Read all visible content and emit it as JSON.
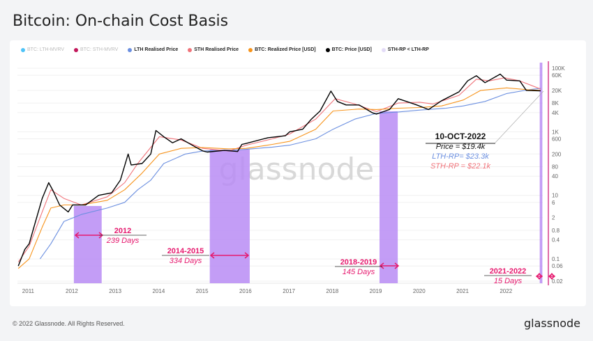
{
  "title": "Bitcoin: On-chain Cost Basis",
  "legend": [
    {
      "label": "BTC: LTH-MVRV",
      "color": "#4fc3f7",
      "faded": true
    },
    {
      "label": "BTC: STH-MVRV",
      "color": "#c2185b",
      "faded": true
    },
    {
      "label": "LTH Realised Price",
      "color": "#6b8fe0",
      "faded": false
    },
    {
      "label": "STH Realised Price",
      "color": "#f0737a",
      "faded": false
    },
    {
      "label": "BTC: Realized Price [USD]",
      "color": "#f7931a",
      "faded": false
    },
    {
      "label": "BTC: Price [USD]",
      "color": "#000000",
      "faded": false
    },
    {
      "label": "STH-RP < LTH-RP",
      "color": "#e4dcf7",
      "faded": false
    }
  ],
  "watermark": "glassnode",
  "footer": {
    "copyright": "© 2022 Glassnode. All Rights Reserved.",
    "logo": "glassnode"
  },
  "colors": {
    "shade": "#b98cf5",
    "annotation": "#e6196e",
    "marker_line": "#d63a8a"
  },
  "chart_data": {
    "type": "line",
    "y_scale": "log",
    "ylim": [
      0.02,
      100000
    ],
    "xlim": [
      2010.73,
      2022.83
    ],
    "grid": true,
    "legend_placement": "top-left",
    "x_ticks": [
      "2011",
      "2012",
      "2013",
      "2014",
      "2015",
      "2016",
      "2017",
      "2018",
      "2019",
      "2020",
      "2021",
      "2022"
    ],
    "y_ticks": [
      {
        "v": 100000,
        "label": "100K"
      },
      {
        "v": 60000,
        "label": "60K"
      },
      {
        "v": 20000,
        "label": "20K"
      },
      {
        "v": 8000,
        "label": "8K"
      },
      {
        "v": 4000,
        "label": "4K"
      },
      {
        "v": 1000,
        "label": "1K"
      },
      {
        "v": 600,
        "label": "600"
      },
      {
        "v": 200,
        "label": "200"
      },
      {
        "v": 80,
        "label": "80"
      },
      {
        "v": 40,
        "label": "40"
      },
      {
        "v": 10,
        "label": "10"
      },
      {
        "v": 6,
        "label": "6"
      },
      {
        "v": 2,
        "label": "2"
      },
      {
        "v": 0.8,
        "label": "0.8"
      },
      {
        "v": 0.4,
        "label": "0.4"
      },
      {
        "v": 0.1,
        "label": "0.1"
      },
      {
        "v": 0.06,
        "label": "0.06"
      },
      {
        "v": 0.02,
        "label": "0.02"
      }
    ],
    "series": [
      {
        "name": "BTC: Price [USD]",
        "color": "#000000",
        "points": [
          [
            2010.75,
            0.06
          ],
          [
            2010.9,
            0.2
          ],
          [
            2011.0,
            0.3
          ],
          [
            2011.1,
            0.9
          ],
          [
            2011.3,
            8
          ],
          [
            2011.45,
            25
          ],
          [
            2011.55,
            14
          ],
          [
            2011.7,
            5
          ],
          [
            2011.9,
            3
          ],
          [
            2012.0,
            5
          ],
          [
            2012.3,
            5
          ],
          [
            2012.6,
            10
          ],
          [
            2012.9,
            12
          ],
          [
            2013.1,
            30
          ],
          [
            2013.28,
            200
          ],
          [
            2013.35,
            90
          ],
          [
            2013.6,
            100
          ],
          [
            2013.8,
            200
          ],
          [
            2013.92,
            1100
          ],
          [
            2014.1,
            700
          ],
          [
            2014.3,
            450
          ],
          [
            2014.5,
            600
          ],
          [
            2014.8,
            350
          ],
          [
            2015.0,
            250
          ],
          [
            2015.1,
            230
          ],
          [
            2015.5,
            260
          ],
          [
            2015.8,
            240
          ],
          [
            2015.9,
            400
          ],
          [
            2016.0,
            430
          ],
          [
            2016.5,
            650
          ],
          [
            2016.9,
            750
          ],
          [
            2017.0,
            1000
          ],
          [
            2017.3,
            1200
          ],
          [
            2017.5,
            2500
          ],
          [
            2017.7,
            4500
          ],
          [
            2017.95,
            19000
          ],
          [
            2018.1,
            9000
          ],
          [
            2018.3,
            7000
          ],
          [
            2018.6,
            7000
          ],
          [
            2018.9,
            4000
          ],
          [
            2019.0,
            3600
          ],
          [
            2019.3,
            5000
          ],
          [
            2019.5,
            11000
          ],
          [
            2019.9,
            7200
          ],
          [
            2020.2,
            5000
          ],
          [
            2020.5,
            9500
          ],
          [
            2020.9,
            18000
          ],
          [
            2021.1,
            40000
          ],
          [
            2021.3,
            58000
          ],
          [
            2021.5,
            35000
          ],
          [
            2021.85,
            65000
          ],
          [
            2022.0,
            42000
          ],
          [
            2022.3,
            40000
          ],
          [
            2022.45,
            20000
          ],
          [
            2022.78,
            19400
          ]
        ]
      },
      {
        "name": "BTC: Realized Price [USD]",
        "color": "#f7931a",
        "points": [
          [
            2010.75,
            0.05
          ],
          [
            2011.0,
            0.1
          ],
          [
            2011.3,
            1
          ],
          [
            2011.5,
            4
          ],
          [
            2011.8,
            5
          ],
          [
            2012.2,
            5
          ],
          [
            2012.8,
            7
          ],
          [
            2013.2,
            15
          ],
          [
            2013.6,
            50
          ],
          [
            2014.0,
            200
          ],
          [
            2014.5,
            300
          ],
          [
            2015.0,
            320
          ],
          [
            2015.6,
            290
          ],
          [
            2016.0,
            300
          ],
          [
            2016.6,
            400
          ],
          [
            2017.0,
            500
          ],
          [
            2017.6,
            1200
          ],
          [
            2018.0,
            4500
          ],
          [
            2018.6,
            5200
          ],
          [
            2019.0,
            5000
          ],
          [
            2019.5,
            5500
          ],
          [
            2020.0,
            5800
          ],
          [
            2020.5,
            6500
          ],
          [
            2021.0,
            10000
          ],
          [
            2021.4,
            20000
          ],
          [
            2022.0,
            24000
          ],
          [
            2022.5,
            21000
          ],
          [
            2022.78,
            20000
          ]
        ]
      },
      {
        "name": "STH Realised Price",
        "color": "#f0737a",
        "points": [
          [
            2010.75,
            0.08
          ],
          [
            2011.0,
            0.25
          ],
          [
            2011.3,
            3
          ],
          [
            2011.5,
            15
          ],
          [
            2011.8,
            8
          ],
          [
            2012.2,
            5
          ],
          [
            2012.8,
            9
          ],
          [
            2013.2,
            25
          ],
          [
            2013.5,
            100
          ],
          [
            2014.0,
            700
          ],
          [
            2014.5,
            550
          ],
          [
            2015.0,
            300
          ],
          [
            2015.6,
            250
          ],
          [
            2016.0,
            380
          ],
          [
            2016.6,
            600
          ],
          [
            2017.0,
            850
          ],
          [
            2017.6,
            2500
          ],
          [
            2018.05,
            11000
          ],
          [
            2018.5,
            7500
          ],
          [
            2019.0,
            4300
          ],
          [
            2019.5,
            8000
          ],
          [
            2020.0,
            8500
          ],
          [
            2020.3,
            7500
          ],
          [
            2020.9,
            14000
          ],
          [
            2021.3,
            45000
          ],
          [
            2021.6,
            40000
          ],
          [
            2021.95,
            50000
          ],
          [
            2022.3,
            40000
          ],
          [
            2022.78,
            22100
          ]
        ]
      },
      {
        "name": "LTH Realised Price",
        "color": "#6b8fe0",
        "points": [
          [
            2011.25,
            0.1
          ],
          [
            2011.5,
            0.3
          ],
          [
            2011.8,
            1.5
          ],
          [
            2012.2,
            2.5
          ],
          [
            2012.8,
            4
          ],
          [
            2013.2,
            6
          ],
          [
            2013.5,
            15
          ],
          [
            2013.8,
            30
          ],
          [
            2014.1,
            100
          ],
          [
            2014.6,
            200
          ],
          [
            2015.0,
            250
          ],
          [
            2015.6,
            260
          ],
          [
            2016.0,
            280
          ],
          [
            2016.6,
            330
          ],
          [
            2017.0,
            380
          ],
          [
            2017.6,
            600
          ],
          [
            2018.0,
            1200
          ],
          [
            2018.5,
            2500
          ],
          [
            2019.0,
            3800
          ],
          [
            2019.5,
            4200
          ],
          [
            2020.0,
            4800
          ],
          [
            2020.6,
            5500
          ],
          [
            2021.0,
            6500
          ],
          [
            2021.5,
            9000
          ],
          [
            2022.0,
            16000
          ],
          [
            2022.5,
            21000
          ],
          [
            2022.78,
            23300
          ]
        ]
      }
    ],
    "regions": [
      {
        "start": 2012.03,
        "end": 2012.67,
        "label": "2012",
        "sub": "239 Days"
      },
      {
        "start": 2015.16,
        "end": 2016.08,
        "label": "2014-2015",
        "sub": "334 Days"
      },
      {
        "start": 2019.07,
        "end": 2019.49,
        "label": "2018-2019",
        "sub": "145 Days"
      },
      {
        "start": 2022.76,
        "end": 2022.82,
        "label": "2021-2022",
        "sub": "15 Days"
      }
    ],
    "callout": {
      "date": "10-OCT-2022",
      "price": "Price = $19.4k",
      "lth": "LTH-RP= $23.3k",
      "sth": "STH-RP = $22.1k"
    }
  }
}
